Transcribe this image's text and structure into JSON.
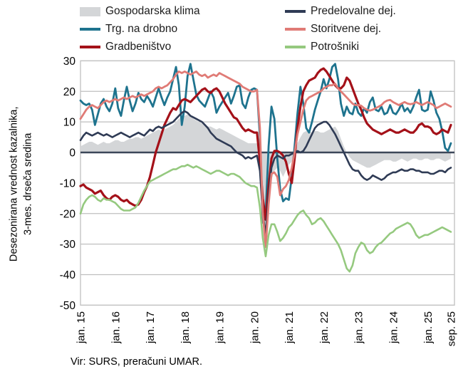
{
  "y_axis": {
    "label_line1": "Desezonirana vrednost kazalnika,",
    "label_line2": "3-mes. drseča sredina",
    "ticks": [
      30,
      20,
      10,
      0,
      -10,
      -20,
      -30,
      -40,
      -50
    ]
  },
  "source": "Vir: SURS, preračuni UMAR.",
  "chart_data": {
    "type": "area+line",
    "title": "",
    "xlabel": "",
    "ylabel": "Desezonirana vrednost kazalnika, 3-mes. drseča sredina",
    "ylim": [
      -50,
      30
    ],
    "grid": "horizontal",
    "legend_position": "top-two-columns",
    "x_start": "jan. 15",
    "x_end": "sep. 25",
    "x_frequency": "monthly",
    "x_tick_labels": [
      "jan. 15",
      "jan. 16",
      "jan. 17",
      "jan. 18",
      "jan. 19",
      "jan. 20",
      "jan. 21",
      "jan. 22",
      "jan. 23",
      "jan. 24",
      "jan. 25",
      "sep. 25"
    ],
    "x_tick_month_indices": [
      0,
      12,
      24,
      36,
      48,
      60,
      72,
      84,
      96,
      108,
      120,
      128
    ],
    "y_ticks": [
      30,
      20,
      10,
      0,
      -10,
      -20,
      -30,
      -40,
      -50
    ],
    "colors": {
      "gridline": "#bfbfbf",
      "zero_line": "#3c4759",
      "border": "#c4c4c4"
    },
    "series": [
      {
        "id": "klima",
        "label": "Gospodarska klima",
        "kind": "area",
        "color": "#d4d6d8",
        "width": 0,
        "values": [
          2,
          2.5,
          3,
          3.5,
          3.5,
          3,
          2.5,
          3,
          3.5,
          3,
          3,
          3.5,
          4,
          4,
          3.5,
          3.5,
          4,
          4.5,
          4.5,
          5,
          5,
          4.5,
          5,
          5.5,
          6,
          6.5,
          7,
          7.5,
          7,
          7.5,
          8,
          8.5,
          9,
          10,
          11,
          11.5,
          12,
          12.5,
          12,
          11,
          10.5,
          10,
          9.5,
          9,
          8.5,
          8.5,
          8,
          7.5,
          8,
          7.5,
          7,
          6.5,
          6,
          5.5,
          5,
          4.5,
          4,
          3.5,
          3,
          3,
          3,
          3,
          -3,
          -18,
          -25,
          -17,
          -9,
          -6,
          -5,
          -6,
          -8,
          -6,
          -4,
          -3,
          0,
          3,
          5,
          6.5,
          7,
          7,
          6.5,
          7,
          7,
          6.5,
          6.5,
          7,
          7.5,
          8,
          8.5,
          7,
          4.5,
          2,
          0,
          -1.5,
          -2.5,
          -3,
          -3.5,
          -4,
          -4.5,
          -5,
          -5,
          -4.5,
          -4,
          -3.5,
          -3,
          -2.5,
          -2.5,
          -2.5,
          -3,
          -3,
          -2.5,
          -2,
          -2.5,
          -3,
          -2.5,
          -2,
          -2,
          -2.5,
          -2.5,
          -2,
          -2,
          -2.5,
          -2.5,
          -2,
          -2,
          -2.5,
          -3,
          -2.5,
          -2
        ]
      },
      {
        "id": "trg",
        "label": "Trg. na drobno",
        "kind": "line",
        "color": "#1e738e",
        "width": 2.8,
        "values": [
          17,
          16,
          15.5,
          16,
          14,
          9,
          12.5,
          16,
          17.5,
          15,
          13.5,
          16,
          21,
          14.5,
          12,
          17,
          21.5,
          17,
          13.5,
          16,
          19.5,
          17.5,
          16.5,
          18.5,
          17,
          15,
          18,
          21,
          18,
          15.5,
          18,
          20,
          24,
          28,
          22,
          9,
          15,
          25,
          29,
          24,
          19,
          17,
          16,
          15,
          17.5,
          20,
          18,
          13,
          15,
          16.5,
          18,
          19.5,
          16,
          18.5,
          21.5,
          22,
          16,
          14.5,
          18,
          20.5,
          21,
          20.5,
          5,
          -23,
          -20,
          2,
          15,
          11,
          -2,
          -12,
          -16,
          -15,
          -15.5,
          -8,
          2,
          13,
          21.5,
          16,
          8,
          6.5,
          10,
          14,
          17,
          20,
          24,
          21,
          24,
          28,
          29,
          24,
          16,
          12,
          15,
          13,
          12.5,
          16,
          13,
          12,
          14.5,
          13,
          16.5,
          18,
          14,
          13.5,
          15,
          12.5,
          13,
          15.5,
          13,
          12.5,
          14,
          16,
          13.5,
          14.5,
          13,
          15,
          18,
          20.5,
          14,
          13.5,
          14,
          20,
          17,
          13,
          11,
          7,
          1.5,
          0.5,
          3
        ]
      },
      {
        "id": "grad",
        "label": "Gradbeništvo",
        "kind": "line",
        "color": "#a41119",
        "width": 3.2,
        "values": [
          -11,
          -10.5,
          -11.5,
          -12,
          -12.5,
          -13.5,
          -13,
          -12.5,
          -14,
          -15,
          -15.5,
          -14.5,
          -14,
          -14.5,
          -15.5,
          -16,
          -15.5,
          -16.5,
          -17,
          -17.5,
          -17,
          -15.5,
          -13,
          -11,
          -8,
          -4,
          0,
          3,
          6,
          9,
          11,
          13,
          14.5,
          14,
          15.5,
          17,
          17.5,
          17,
          16.5,
          17.5,
          18.5,
          19.5,
          20.5,
          21,
          20,
          19.5,
          20.5,
          21,
          20,
          18,
          16,
          14.5,
          13,
          11.5,
          11,
          9.5,
          8,
          7,
          7.5,
          7,
          6.5,
          6.5,
          -3,
          -15,
          -22,
          -11,
          -2,
          0.5,
          0.5,
          0,
          -1,
          -3,
          -7,
          -10,
          -2,
          8,
          15,
          20,
          22,
          23.5,
          24,
          24.5,
          26,
          27,
          27.5,
          26.5,
          25,
          23.5,
          22,
          21,
          21,
          22,
          24.5,
          23.5,
          21,
          18.5,
          16,
          14,
          11.5,
          9.5,
          8.5,
          7.5,
          7,
          6.5,
          6,
          6.5,
          7,
          7.5,
          7,
          6.5,
          6.5,
          7,
          7.5,
          7,
          6.5,
          6.5,
          7.5,
          9,
          9.5,
          8.5,
          8.5,
          8,
          6.5,
          6,
          6.5,
          7.5,
          7,
          6.5,
          9
        ]
      },
      {
        "id": "pred",
        "label": "Predelovalne dej.",
        "kind": "line",
        "color": "#2f3b55",
        "width": 2.6,
        "values": [
          4,
          5.5,
          6.5,
          6,
          5.5,
          6,
          6.5,
          6,
          5.5,
          6,
          5.5,
          5,
          5.5,
          6,
          6.5,
          6,
          5.5,
          5,
          5.5,
          6,
          6.5,
          6,
          5.5,
          6.5,
          7.5,
          7,
          8,
          8.5,
          8,
          8.5,
          9,
          9.5,
          10,
          11,
          12,
          13,
          13.5,
          13,
          12,
          11.5,
          11,
          10.5,
          10,
          9,
          8,
          6.5,
          5.5,
          4.5,
          4,
          3.5,
          3,
          2.5,
          2,
          1,
          0,
          -0.5,
          -1,
          -2,
          -1.5,
          -2,
          -1.5,
          -1,
          -6,
          -20,
          -27,
          -14,
          -5,
          -2,
          -1,
          -1.5,
          -2,
          -1,
          -1,
          -0.5,
          0,
          0.5,
          0,
          0.5,
          2,
          4,
          6,
          8,
          9,
          9.5,
          10,
          10,
          9,
          7.5,
          6,
          4,
          2,
          0,
          -2,
          -4,
          -5.5,
          -6,
          -6,
          -7.5,
          -8.5,
          -9,
          -8.5,
          -7.5,
          -8,
          -8.5,
          -9,
          -8.5,
          -7.5,
          -7,
          -6.5,
          -6.5,
          -6,
          -5.5,
          -6,
          -6,
          -5.5,
          -5.5,
          -6,
          -6,
          -6.5,
          -6.5,
          -6.5,
          -7,
          -7,
          -6.5,
          -6,
          -6,
          -6.5,
          -5.5,
          -5
        ]
      },
      {
        "id": "stor",
        "label": "Storitvene dej.",
        "kind": "line",
        "color": "#e07b76",
        "width": 2.8,
        "values": [
          11,
          12.5,
          14,
          15,
          15.5,
          15,
          14.5,
          15.5,
          16.5,
          17,
          16.5,
          17,
          17.5,
          17,
          17.5,
          18,
          17.5,
          18,
          18.5,
          18,
          18.5,
          19,
          18.5,
          19,
          19.5,
          20,
          21,
          21.5,
          21,
          21.5,
          22,
          23,
          24,
          25.5,
          26.5,
          26,
          26.5,
          26,
          25.5,
          26,
          26.5,
          25.5,
          25,
          25.5,
          24.5,
          25,
          25.5,
          25,
          26,
          25.5,
          25,
          24.5,
          24,
          23.5,
          23,
          22.5,
          21.5,
          21,
          20.5,
          20,
          20,
          20.5,
          8,
          -20,
          -31,
          -17,
          -7,
          -6.5,
          -8,
          -14,
          -12,
          -11,
          -9,
          -5,
          0,
          6,
          10,
          14,
          17,
          18,
          18.5,
          19,
          19.5,
          20,
          21,
          21.5,
          22,
          22,
          22.5,
          21,
          20,
          19,
          18,
          17,
          16,
          15.5,
          15.5,
          15.3,
          14.5,
          14,
          13.7,
          14,
          14.5,
          15,
          15.5,
          16.5,
          17,
          17.2,
          16.5,
          16,
          15.5,
          16,
          16.5,
          16,
          15.8,
          16,
          16.5,
          16,
          15.5,
          16,
          16.5,
          16,
          15.5,
          14.5,
          15,
          15.5,
          16,
          15.5,
          15
        ]
      },
      {
        "id": "potr",
        "label": "Potrošniki",
        "kind": "line",
        "color": "#95c97f",
        "width": 2.6,
        "values": [
          -20,
          -17,
          -15.5,
          -14.5,
          -14,
          -14.5,
          -15.5,
          -16,
          -15,
          -15.5,
          -15.5,
          -16,
          -16.5,
          -17.5,
          -18.5,
          -19,
          -19,
          -19,
          -18.5,
          -18,
          -16.5,
          -14.5,
          -12.5,
          -11,
          -9.5,
          -9,
          -8.5,
          -8,
          -7.5,
          -7,
          -6.5,
          -6,
          -5.5,
          -5.5,
          -5,
          -4.5,
          -4.5,
          -4,
          -4.5,
          -5,
          -4.5,
          -5,
          -5.5,
          -6,
          -6.5,
          -7,
          -6.5,
          -6,
          -6,
          -6.5,
          -7,
          -7.5,
          -7,
          -7,
          -7.5,
          -8,
          -9,
          -10,
          -10.5,
          -11,
          -11,
          -11.5,
          -18,
          -28,
          -34,
          -27,
          -23.5,
          -23.5,
          -26,
          -29,
          -28,
          -26.5,
          -24.5,
          -23.5,
          -22,
          -20.5,
          -19.5,
          -19,
          -20.5,
          -21.5,
          -23.5,
          -23,
          -22,
          -21.5,
          -22.5,
          -24,
          -25.5,
          -27,
          -28.5,
          -30,
          -32,
          -35,
          -38,
          -39,
          -37,
          -33,
          -31,
          -29.5,
          -30,
          -32,
          -33,
          -32.5,
          -31,
          -30,
          -29.5,
          -28.5,
          -27.5,
          -26.5,
          -26,
          -25,
          -24.5,
          -24,
          -23.5,
          -23,
          -23.5,
          -25,
          -27,
          -28,
          -27.5,
          -27,
          -27,
          -26.5,
          -26,
          -25.5,
          -25,
          -24.5,
          -25,
          -25.5,
          -26
        ]
      }
    ]
  }
}
